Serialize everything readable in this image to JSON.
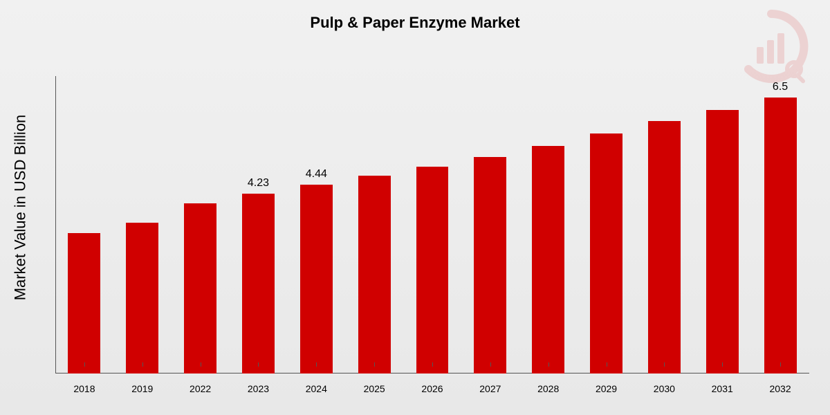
{
  "chart": {
    "type": "bar",
    "title": "Pulp & Paper Enzyme Market",
    "title_fontsize": 22,
    "y_label": "Market Value in USD Billion",
    "y_label_fontsize": 22,
    "background_gradient": [
      "#f1f1f1",
      "#e8e8e8"
    ],
    "axis_color": "#555555",
    "tick_font_size": 14,
    "bar_label_font_size": 16,
    "y_max": 7.0,
    "bar_width_ratio": 0.56,
    "bar_color": "#d00000",
    "watermark_color": "#d00000",
    "categories": [
      "2018",
      "2019",
      "2022",
      "2023",
      "2024",
      "2025",
      "2026",
      "2027",
      "2028",
      "2029",
      "2030",
      "2031",
      "2032"
    ],
    "values": [
      3.3,
      3.55,
      4.0,
      4.23,
      4.44,
      4.65,
      4.87,
      5.1,
      5.35,
      5.65,
      5.95,
      6.2,
      6.5
    ],
    "value_labels": [
      "",
      "",
      "",
      "4.23",
      "4.44",
      "",
      "",
      "",
      "",
      "",
      "",
      "",
      "6.5"
    ]
  }
}
